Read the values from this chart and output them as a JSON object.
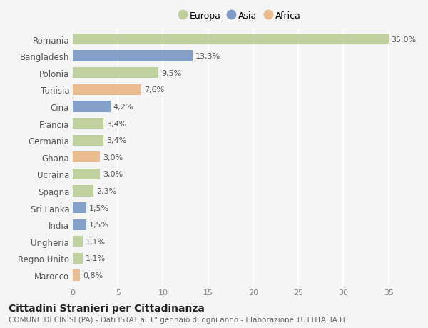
{
  "categories": [
    "Romania",
    "Bangladesh",
    "Polonia",
    "Tunisia",
    "Cina",
    "Francia",
    "Germania",
    "Ghana",
    "Ucraina",
    "Spagna",
    "Sri Lanka",
    "India",
    "Ungheria",
    "Regno Unito",
    "Marocco"
  ],
  "values": [
    35.0,
    13.3,
    9.5,
    7.6,
    4.2,
    3.4,
    3.4,
    3.0,
    3.0,
    2.3,
    1.5,
    1.5,
    1.1,
    1.1,
    0.8
  ],
  "labels": [
    "35,0%",
    "13,3%",
    "9,5%",
    "7,6%",
    "4,2%",
    "3,4%",
    "3,4%",
    "3,0%",
    "3,0%",
    "2,3%",
    "1,5%",
    "1,5%",
    "1,1%",
    "1,1%",
    "0,8%"
  ],
  "colors": [
    "#b5c98e",
    "#6b8cbf",
    "#b5c98e",
    "#e8b07a",
    "#6b8cbf",
    "#b5c98e",
    "#b5c98e",
    "#e8b07a",
    "#b5c98e",
    "#b5c98e",
    "#6b8cbf",
    "#6b8cbf",
    "#b5c98e",
    "#b5c98e",
    "#e8b07a"
  ],
  "legend_labels": [
    "Europa",
    "Asia",
    "Africa"
  ],
  "legend_colors": [
    "#b5c98e",
    "#6b8cbf",
    "#e8b07a"
  ],
  "title": "Cittadini Stranieri per Cittadinanza",
  "subtitle": "COMUNE DI CINISI (PA) - Dati ISTAT al 1° gennaio di ogni anno - Elaborazione TUTTITALIA.IT",
  "xlim": [
    0,
    37
  ],
  "xticks": [
    0,
    5,
    10,
    15,
    20,
    25,
    30,
    35
  ],
  "background_color": "#f5f5f5",
  "plot_bg_color": "#f5f5f5",
  "grid_color": "#ffffff",
  "bar_height": 0.65,
  "label_fontsize": 8,
  "ytick_fontsize": 8.5,
  "xtick_fontsize": 8,
  "title_fontsize": 10,
  "subtitle_fontsize": 7.5
}
